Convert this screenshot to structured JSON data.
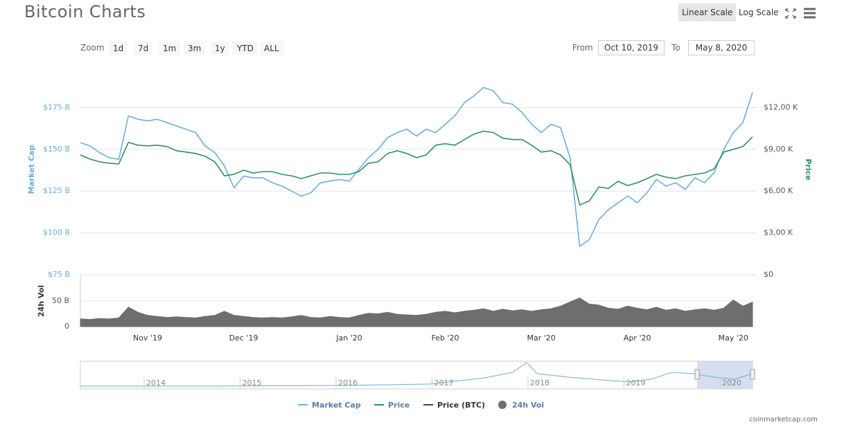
{
  "header": {
    "title": "Bitcoin Charts",
    "scale_buttons": [
      "Linear Scale",
      "Log Scale"
    ]
  },
  "controls": {
    "zoom_label": "Zoom",
    "zoom": [
      "1d",
      "7d",
      "1m",
      "3m",
      "1y",
      "YTD",
      "ALL"
    ],
    "from_label": "From",
    "from": "Oct 10, 2019",
    "to_label": "To",
    "to": "May 8, 2020"
  },
  "chart_data": [
    {
      "type": "line",
      "y_label": "Market Cap",
      "y2_label": "Price",
      "categories": [
        null,
        null,
        null,
        null,
        null,
        null,
        null,
        "Nov '19",
        null,
        null,
        null,
        null,
        null,
        null,
        null,
        null,
        null,
        "Dec '19",
        null,
        null,
        null,
        null,
        null,
        null,
        null,
        null,
        null,
        null,
        "Jan '20",
        null,
        null,
        null,
        null,
        null,
        null,
        null,
        null,
        null,
        "Feb '20",
        null,
        null,
        null,
        null,
        null,
        null,
        null,
        null,
        null,
        "Mar '20",
        null,
        null,
        null,
        null,
        null,
        null,
        null,
        null,
        null,
        "Apr '20",
        null,
        null,
        null,
        null,
        null,
        null,
        null,
        null,
        null,
        "May '20",
        null,
        null
      ],
      "series": [
        {
          "name": "Market Cap",
          "color": "#6aaed6",
          "values": [
            154,
            152,
            148,
            145,
            144,
            170,
            168,
            167,
            168,
            166,
            164,
            162,
            160,
            152,
            148,
            140,
            127,
            134,
            133,
            133,
            130,
            128,
            125,
            122,
            124,
            130,
            131,
            132,
            131,
            138,
            145,
            150,
            157,
            160,
            162,
            158,
            162,
            160,
            165,
            170,
            178,
            182,
            187,
            185,
            178,
            177,
            172,
            165,
            160,
            165,
            163,
            145,
            92,
            96,
            108,
            114,
            118,
            122,
            118,
            124,
            132,
            128,
            130,
            126,
            133,
            130,
            136,
            150,
            160,
            166,
            184
          ]
        },
        {
          "name": "Price",
          "color": "#2f8f62",
          "axis": "y2",
          "values": [
            8600,
            8300,
            8100,
            8000,
            7950,
            9500,
            9300,
            9250,
            9300,
            9200,
            8900,
            8800,
            8700,
            8500,
            8100,
            7100,
            7200,
            7500,
            7300,
            7400,
            7400,
            7200,
            7100,
            6900,
            7100,
            7300,
            7300,
            7200,
            7200,
            7400,
            8000,
            8100,
            8700,
            8900,
            8700,
            8400,
            8600,
            9300,
            9400,
            9300,
            9700,
            10100,
            10300,
            10200,
            9800,
            9700,
            9700,
            9300,
            8800,
            8900,
            8600,
            7900,
            5000,
            5300,
            6300,
            6200,
            6700,
            6400,
            6600,
            6900,
            7200,
            7000,
            6900,
            7100,
            7200,
            7300,
            7600,
            8800,
            9000,
            9200,
            9900
          ]
        }
      ],
      "legend_only": [
        {
          "name": "Price (BTC)",
          "color": "#434348"
        }
      ],
      "ylim": [
        75,
        200
      ],
      "yticks": [
        {
          "value": 75,
          "label": "$75 B"
        },
        {
          "value": 100,
          "label": "$100 B"
        },
        {
          "value": 125,
          "label": "$125 B"
        },
        {
          "value": 150,
          "label": "$150 B"
        },
        {
          "value": 175,
          "label": "$175 B"
        }
      ],
      "y2lim": [
        0,
        15000
      ],
      "y2ticks": [
        {
          "value": 0,
          "label": "$0"
        },
        {
          "value": 3000,
          "label": "$3,00 K"
        },
        {
          "value": 6000,
          "label": "$6,00 K"
        },
        {
          "value": 9000,
          "label": "$9,00 K"
        },
        {
          "value": 12000,
          "label": "$12,00 K"
        }
      ],
      "grid": true
    },
    {
      "type": "area",
      "y_label": "24h Vol",
      "series": [
        {
          "name": "24h Vol",
          "color": "#6e6e6e",
          "values": [
            15,
            14,
            16,
            15,
            17,
            38,
            28,
            22,
            20,
            18,
            19,
            18,
            17,
            20,
            22,
            30,
            22,
            20,
            18,
            17,
            18,
            17,
            19,
            22,
            18,
            17,
            20,
            18,
            17,
            22,
            26,
            25,
            28,
            24,
            23,
            22,
            24,
            28,
            30,
            27,
            30,
            32,
            35,
            30,
            34,
            31,
            33,
            30,
            33,
            35,
            40,
            48,
            56,
            44,
            42,
            36,
            34,
            40,
            36,
            33,
            38,
            32,
            35,
            30,
            33,
            35,
            32,
            36,
            52,
            40,
            48
          ]
        }
      ],
      "ylim": [
        0,
        100
      ],
      "yticks": [
        0,
        {
          "value": 50,
          "label": "50 B"
        }
      ],
      "grid": true
    }
  ],
  "navigator": {
    "labels": [
      "2014",
      "2015",
      "2016",
      "2017",
      "2018",
      "2019",
      "2020"
    ]
  },
  "footer": {
    "credit": "coinmarketcap.com"
  }
}
